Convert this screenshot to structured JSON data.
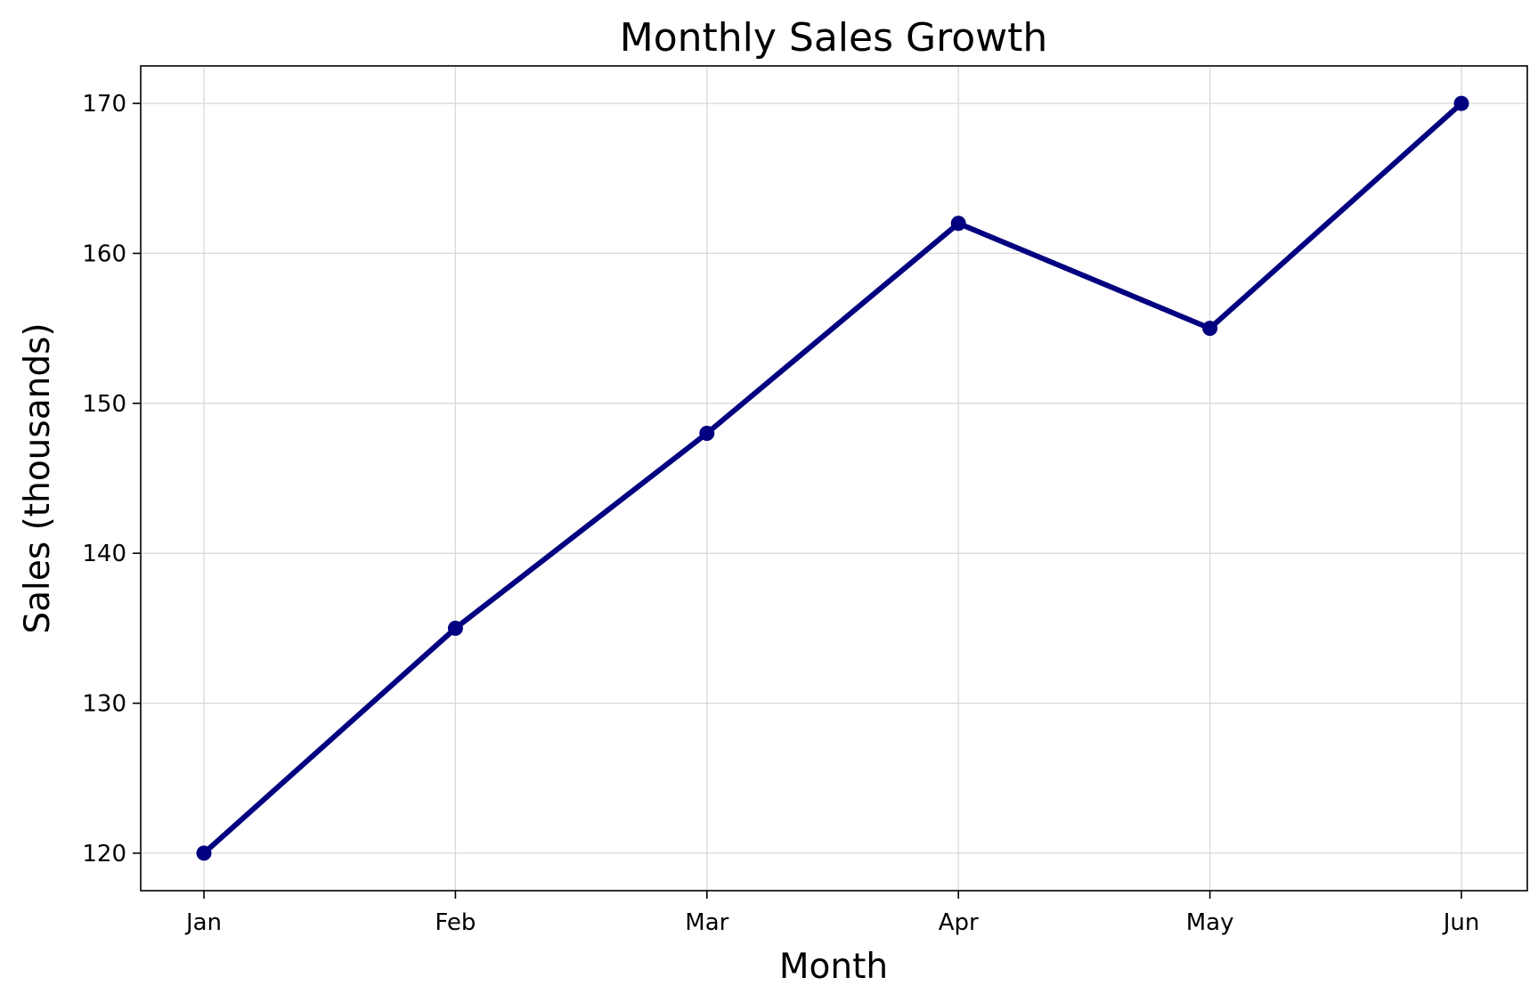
{
  "chart_data": {
    "type": "line",
    "title": "Monthly Sales Growth",
    "xlabel": "Month",
    "ylabel": "Sales (thousands)",
    "categories": [
      "Jan",
      "Feb",
      "Mar",
      "Apr",
      "May",
      "Jun"
    ],
    "series": [
      {
        "values": [
          120,
          135,
          148,
          162,
          155,
          170
        ],
        "color": "#000080",
        "marker": "circle"
      }
    ],
    "ylim": [
      117.5,
      172.5
    ],
    "yticks": [
      120,
      130,
      140,
      150,
      160,
      170
    ],
    "grid": true,
    "legend": "none"
  }
}
